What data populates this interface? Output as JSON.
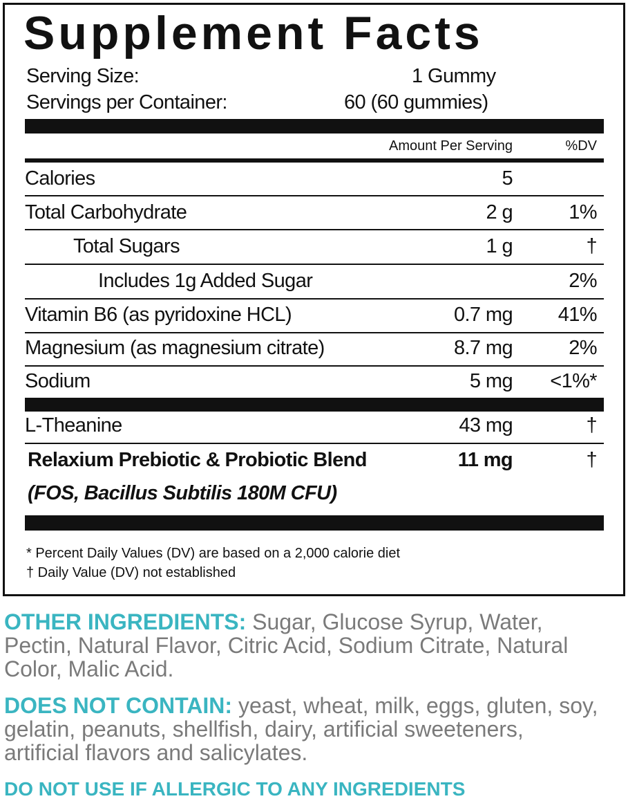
{
  "title": "Supplement Facts",
  "serving": [
    {
      "label": "Serving Size:",
      "value": "1 Gummy"
    },
    {
      "label": "Servings per Container:",
      "value": "60 (60 gummies)"
    }
  ],
  "header": {
    "amount": "Amount Per Serving",
    "dv": "%DV"
  },
  "rows": [
    {
      "name": "Calories",
      "amount": "5",
      "dv": ""
    },
    {
      "name": "Total Carbohydrate",
      "amount": "2 g",
      "dv": "1%"
    },
    {
      "name": "Total Sugars",
      "amount": "1 g",
      "dv": "†"
    },
    {
      "name": "Includes 1g Added Sugar",
      "amount": "",
      "dv": "2%"
    },
    {
      "name": "Vitamin B6 (as pyridoxine HCL)",
      "amount": "0.7 mg",
      "dv": "41%"
    },
    {
      "name": "Magnesium (as magnesium citrate)",
      "amount": "8.7 mg",
      "dv": "2%"
    },
    {
      "name": "Sodium",
      "amount": "5 mg",
      "dv": "<1%*"
    },
    {
      "name": "L-Theanine",
      "amount": "43 mg",
      "dv": "†"
    },
    {
      "name": "Relaxium Prebiotic & Probiotic Blend",
      "amount": "11 mg",
      "dv": "†",
      "detail": "(FOS, Bacillus Subtilis 180M CFU)"
    }
  ],
  "footnotes": [
    "* Percent Daily Values (DV) are based on a 2,000 calorie diet",
    "† Daily Value (DV) not established"
  ],
  "other_ingredients": {
    "label": "OTHER INGREDIENTS:",
    "text": "Sugar, Glucose Syrup, Water, Pectin, Natural Flavor, Citric Acid, Sodium Citrate, Natural Color, Malic Acid."
  },
  "does_not_contain": {
    "label": "DOES NOT CONTAIN:",
    "text": "yeast, wheat, milk, eggs, gluten, soy, gelatin, peanuts, shellfish, dairy, artificial sweeteners, artificial flavors and salicylates."
  },
  "warning": "DO NOT USE IF ALLERGIC TO ANY INGREDIENTS"
}
